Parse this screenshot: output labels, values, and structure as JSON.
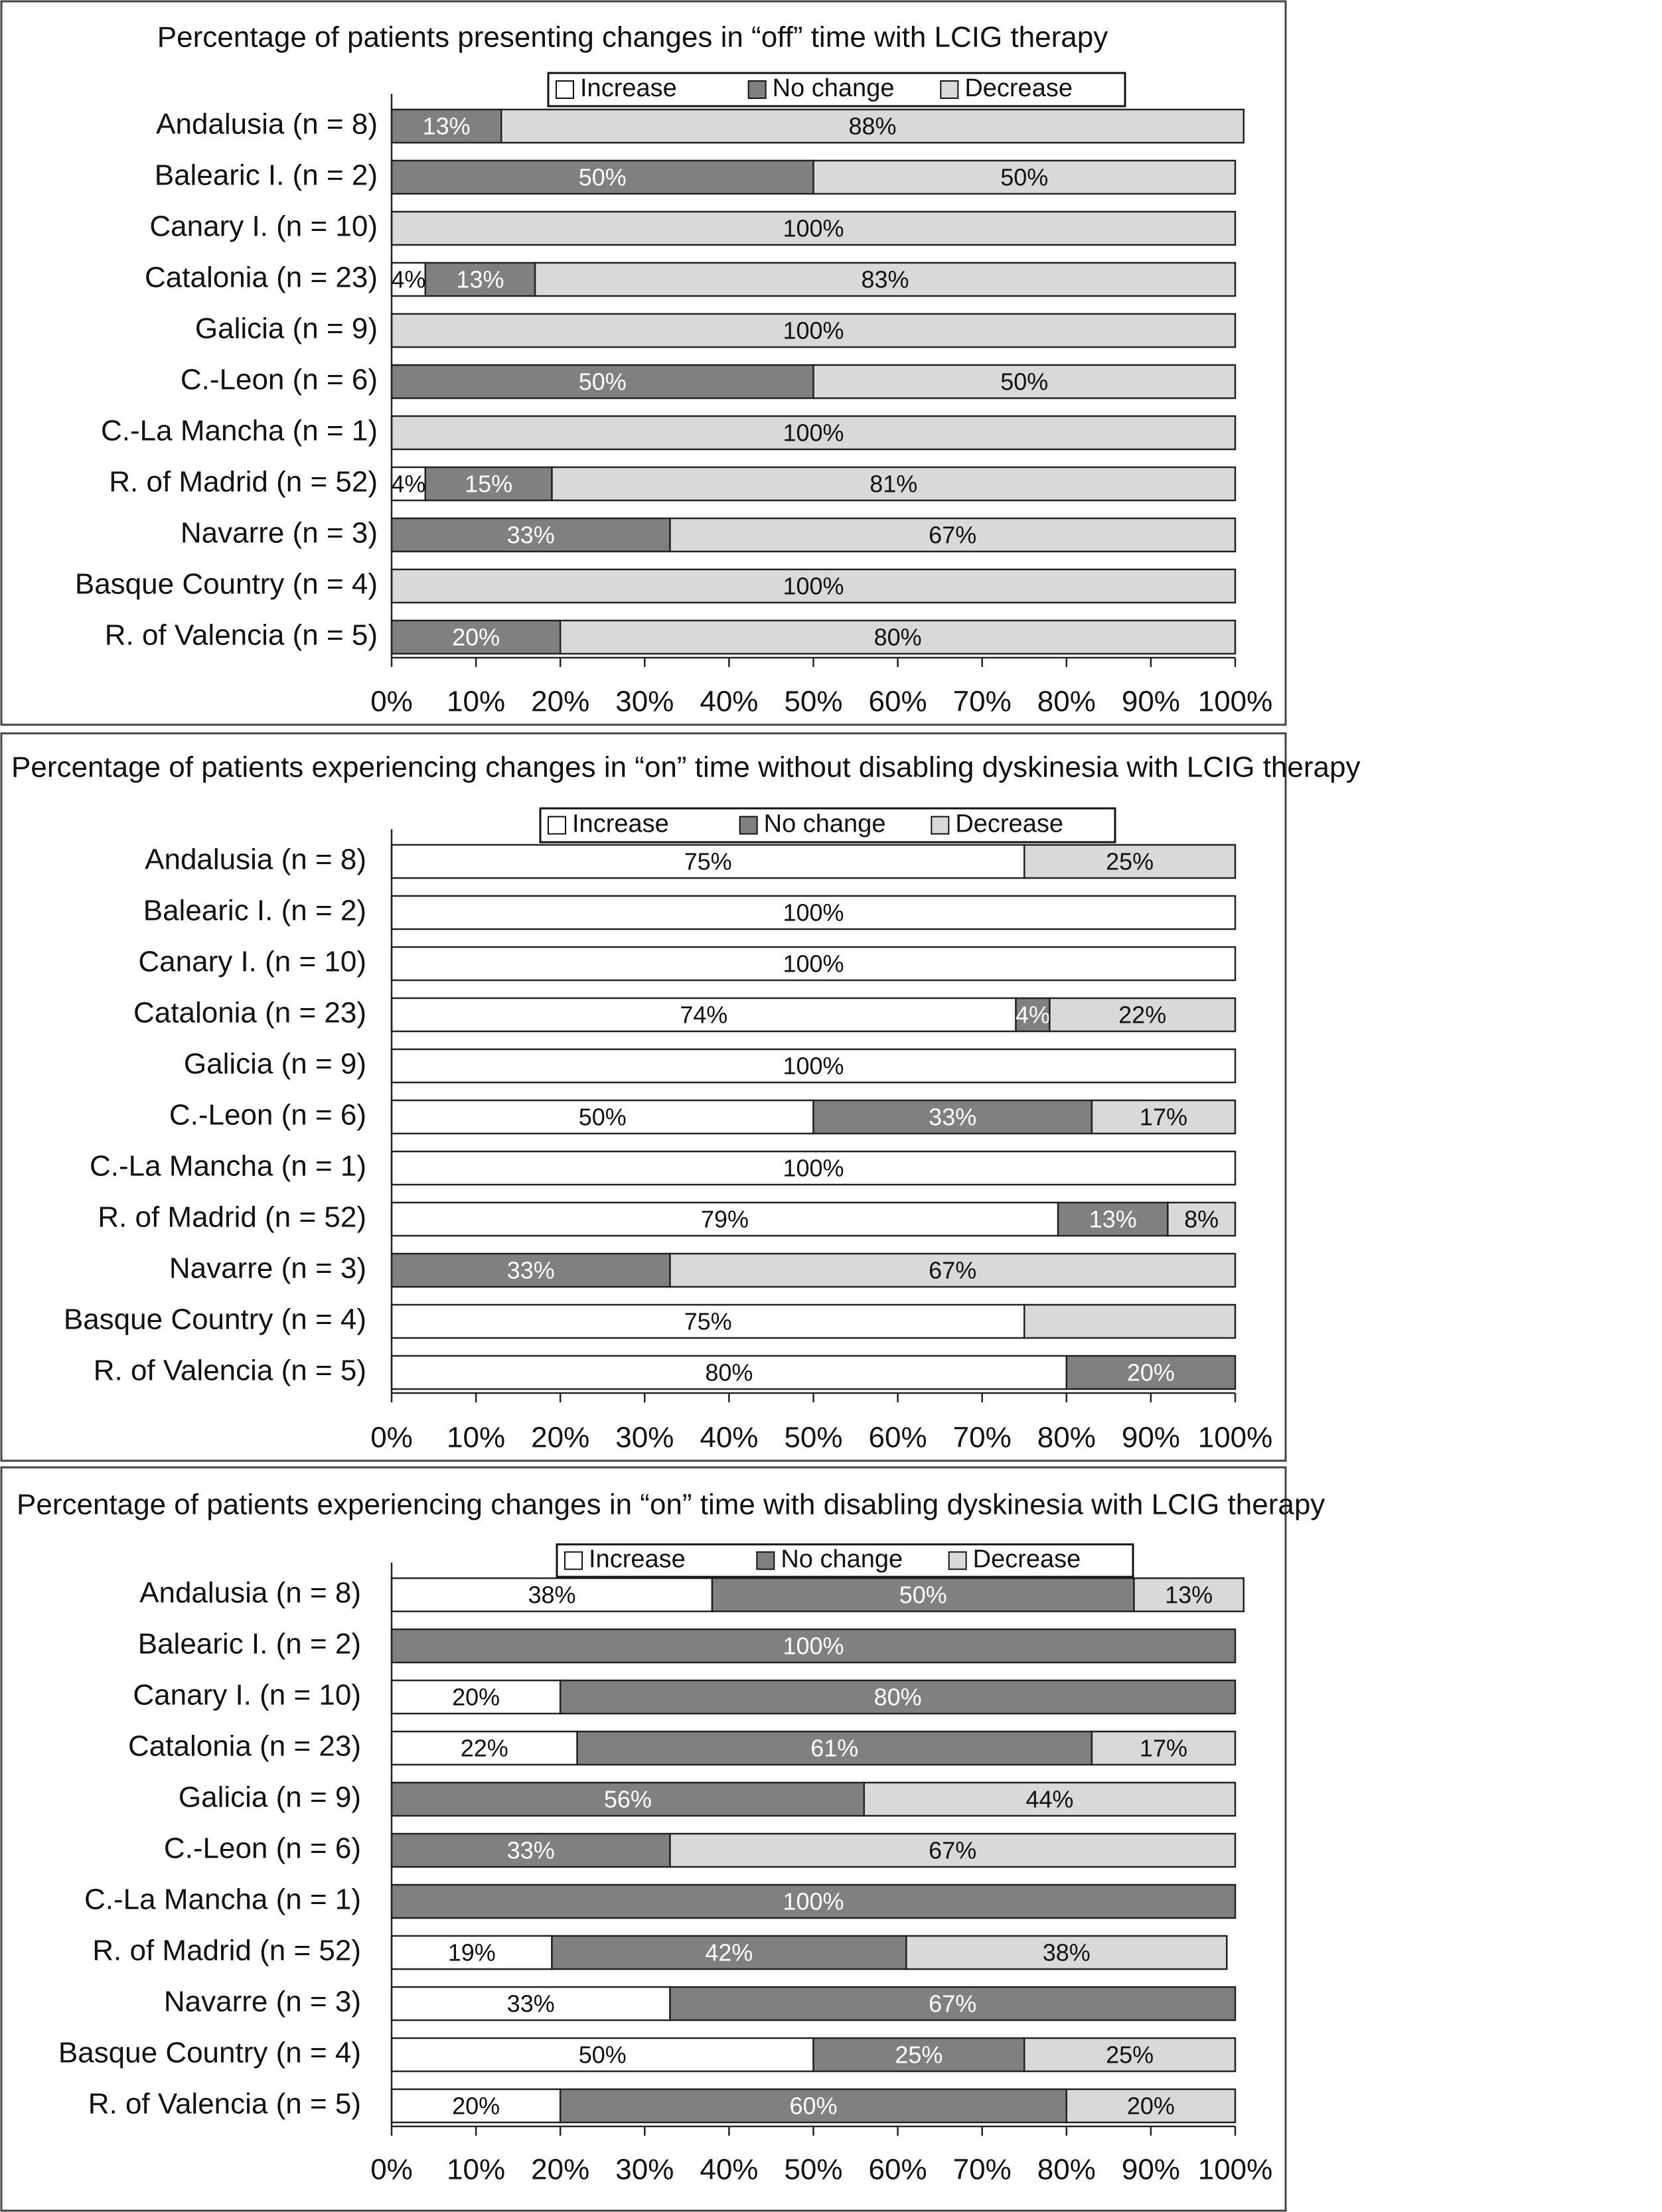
{
  "chart_data": [
    {
      "type": "bar",
      "orientation": "horizontal",
      "stacked": true,
      "title": "Percentage of patients presenting changes in “off” time with LCIG therapy",
      "categories": [
        "Andalusia (n = 8)",
        "Balearic I. (n = 2)",
        "Canary I. (n = 10)",
        "Catalonia (n = 23)",
        "Galicia (n = 9)",
        "C.-Leon (n = 6)",
        "C.-La Mancha (n = 1)",
        "R. of Madrid (n = 52)",
        "Navarre (n = 3)",
        "Basque Country (n = 4)",
        "R. of Valencia (n = 5)"
      ],
      "series": [
        {
          "name": "Increase",
          "color": "#ffffff",
          "values": [
            null,
            null,
            null,
            4,
            null,
            null,
            null,
            4,
            null,
            null,
            null
          ],
          "value_labels": [
            null,
            null,
            null,
            "4%",
            null,
            null,
            null,
            "4%",
            null,
            null,
            null
          ]
        },
        {
          "name": "No change",
          "color": "#808080",
          "values": [
            13,
            50,
            null,
            13,
            null,
            50,
            null,
            15,
            33,
            null,
            20
          ],
          "value_labels": [
            "13%",
            "50%",
            null,
            "13%",
            null,
            "50%",
            null,
            "15%",
            "33%",
            null,
            "20%"
          ]
        },
        {
          "name": "Decrease",
          "color": "#d9d9d9",
          "values": [
            88,
            50,
            100,
            83,
            100,
            50,
            100,
            81,
            67,
            100,
            80
          ],
          "value_labels": [
            "88%",
            "50%",
            "100%",
            "83%",
            "100%",
            "50%",
            "100%",
            "81%",
            "67%",
            "100%",
            "80%"
          ]
        }
      ],
      "xlim": [
        0,
        100
      ],
      "xticks": [
        {
          "value": 0,
          "label": "0%"
        },
        {
          "value": 10,
          "label": "10%"
        },
        {
          "value": 20,
          "label": "20%"
        },
        {
          "value": 30,
          "label": "30%"
        },
        {
          "value": 40,
          "label": "40%"
        },
        {
          "value": 50,
          "label": "50%"
        },
        {
          "value": 60,
          "label": "60%"
        },
        {
          "value": 70,
          "label": "70%"
        },
        {
          "value": 80,
          "label": "80%"
        },
        {
          "value": 90,
          "label": "90%"
        },
        {
          "value": 100,
          "label": "100%"
        }
      ]
    },
    {
      "type": "bar",
      "orientation": "horizontal",
      "stacked": true,
      "title": "Percentage of patients experiencing changes in “on” time without disabling dyskinesia with LCIG therapy",
      "categories": [
        "Andalusia (n = 8)",
        "Balearic I. (n = 2)",
        "Canary I. (n = 10)",
        "Catalonia (n = 23)",
        "Galicia (n = 9)",
        "C.-Leon (n = 6)",
        "C.-La Mancha (n = 1)",
        "R. of Madrid (n = 52)",
        "Navarre (n = 3)",
        "Basque Country (n = 4)",
        "R. of Valencia (n = 5)"
      ],
      "series": [
        {
          "name": "Increase",
          "color": "#ffffff",
          "values": [
            75,
            100,
            100,
            74,
            100,
            50,
            100,
            79,
            null,
            75,
            80
          ],
          "value_labels": [
            "75%",
            "100%",
            "100%",
            "74%",
            "100%",
            "50%",
            "100%",
            "79%",
            null,
            "75%",
            "80%"
          ]
        },
        {
          "name": "No change",
          "color": "#808080",
          "values": [
            null,
            null,
            null,
            4,
            null,
            33,
            null,
            13,
            33,
            null,
            20
          ],
          "value_labels": [
            null,
            null,
            null,
            "4%",
            null,
            "33%",
            null,
            "13%",
            "33%",
            null,
            "20%"
          ]
        },
        {
          "name": "Decrease",
          "color": "#d9d9d9",
          "values": [
            25,
            null,
            null,
            22,
            null,
            17,
            null,
            8,
            67,
            25,
            null
          ],
          "value_labels": [
            "25%",
            null,
            null,
            "22%",
            null,
            "17%",
            null,
            "8%",
            "67%",
            null,
            null
          ]
        }
      ],
      "xlim": [
        0,
        100
      ],
      "xticks": [
        {
          "value": 0,
          "label": "0%"
        },
        {
          "value": 10,
          "label": "10%"
        },
        {
          "value": 20,
          "label": "20%"
        },
        {
          "value": 30,
          "label": "30%"
        },
        {
          "value": 40,
          "label": "40%"
        },
        {
          "value": 50,
          "label": "50%"
        },
        {
          "value": 60,
          "label": "60%"
        },
        {
          "value": 70,
          "label": "70%"
        },
        {
          "value": 80,
          "label": "80%"
        },
        {
          "value": 90,
          "label": "90%"
        },
        {
          "value": 100,
          "label": "100%"
        }
      ]
    },
    {
      "type": "bar",
      "orientation": "horizontal",
      "stacked": true,
      "title": "Percentage of patients experiencing changes in “on” time with disabling dyskinesia with LCIG therapy",
      "categories": [
        "Andalusia (n = 8)",
        "Balearic I. (n = 2)",
        "Canary I. (n = 10)",
        "Catalonia (n = 23)",
        "Galicia (n = 9)",
        "C.-Leon (n = 6)",
        "C.-La Mancha (n = 1)",
        "R. of Madrid (n = 52)",
        "Navarre (n = 3)",
        "Basque Country (n = 4)",
        "R. of Valencia (n = 5)"
      ],
      "series": [
        {
          "name": "Increase",
          "color": "#ffffff",
          "values": [
            38,
            null,
            20,
            22,
            null,
            null,
            null,
            19,
            33,
            50,
            20
          ],
          "value_labels": [
            "38%",
            null,
            "20%",
            "22%",
            null,
            null,
            null,
            "19%",
            "33%",
            "50%",
            "20%"
          ]
        },
        {
          "name": "No change",
          "color": "#808080",
          "values": [
            50,
            100,
            80,
            61,
            56,
            33,
            100,
            42,
            67,
            25,
            60
          ],
          "value_labels": [
            "50%",
            "100%",
            "80%",
            "61%",
            "56%",
            "33%",
            "100%",
            "42%",
            "67%",
            "25%",
            "60%"
          ]
        },
        {
          "name": "Decrease",
          "color": "#d9d9d9",
          "values": [
            13,
            null,
            null,
            17,
            44,
            67,
            null,
            38,
            null,
            25,
            20
          ],
          "value_labels": [
            "13%",
            null,
            null,
            "17%",
            "44%",
            "67%",
            null,
            "38%",
            null,
            "25%",
            "20%"
          ]
        }
      ],
      "xlim": [
        0,
        100
      ],
      "xticks": [
        {
          "value": 0,
          "label": "0%"
        },
        {
          "value": 10,
          "label": "10%"
        },
        {
          "value": 20,
          "label": "20%"
        },
        {
          "value": 30,
          "label": "30%"
        },
        {
          "value": 40,
          "label": "40%"
        },
        {
          "value": 50,
          "label": "50%"
        },
        {
          "value": 60,
          "label": "60%"
        },
        {
          "value": 70,
          "label": "70%"
        },
        {
          "value": 80,
          "label": "80%"
        },
        {
          "value": 90,
          "label": "90%"
        },
        {
          "value": 100,
          "label": "100%"
        }
      ]
    }
  ]
}
